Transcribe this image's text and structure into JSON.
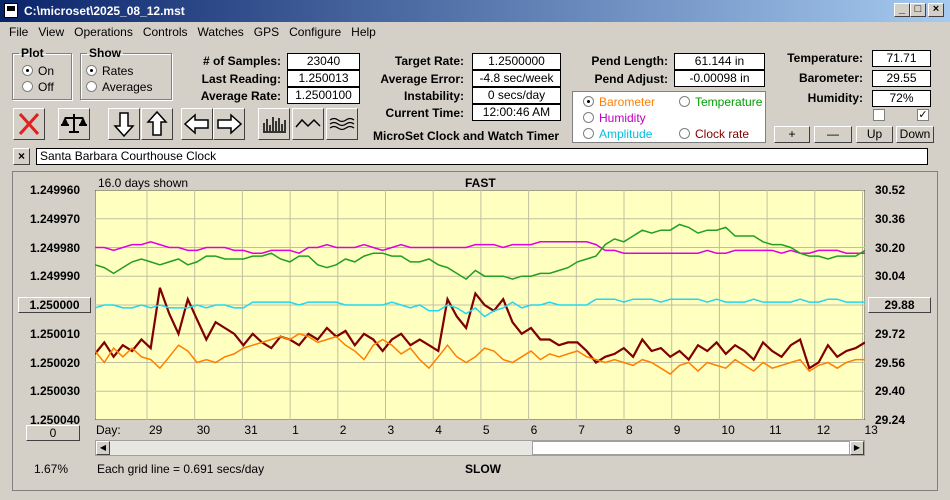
{
  "window": {
    "title": "C:\\microset\\2025_08_12.mst",
    "min_icon": "minimize-icon",
    "max_icon": "maximize-icon",
    "close_icon": "close-icon"
  },
  "menu": [
    "File",
    "View",
    "Operations",
    "Controls",
    "Watches",
    "GPS",
    "Configure",
    "Help"
  ],
  "plot_group": {
    "title": "Plot",
    "options": [
      "On",
      "Off"
    ],
    "selected": "On"
  },
  "show_group": {
    "title": "Show",
    "options": [
      "Rates",
      "Averages"
    ],
    "selected": "Rates"
  },
  "stats_left": [
    {
      "label": "# of Samples:",
      "value": "23040"
    },
    {
      "label": "Last Reading:",
      "value": "1.250013"
    },
    {
      "label": "Average Rate:",
      "value": "1.2500100"
    }
  ],
  "stats_mid": [
    {
      "label": "Target Rate:",
      "value": "1.2500000"
    },
    {
      "label": "Average Error:",
      "value": "-4.8 sec/week"
    },
    {
      "label": "Instability:",
      "value": "0 secs/day"
    },
    {
      "label": "Current Time:",
      "value": "12:00:46 AM"
    }
  ],
  "stats_pend": [
    {
      "label": "Pend Length:",
      "value": "61.144 in"
    },
    {
      "label": "Pend Adjust:",
      "value": "-0.00098 in"
    }
  ],
  "stats_env": [
    {
      "label": "Temperature:",
      "value": "71.71"
    },
    {
      "label": "Barometer:",
      "value": "29.55"
    },
    {
      "label": "Humidity:",
      "value": "72%"
    }
  ],
  "app_title": "MicroSet Clock and Watch Timer",
  "sensors": [
    {
      "label": "Barometer",
      "color": "#ff8000",
      "selected": true
    },
    {
      "label": "Temperature",
      "color": "#00a000",
      "selected": false
    },
    {
      "label": "Humidity",
      "color": "#c000c0",
      "selected": false
    },
    {
      "label": "Amplitude",
      "color": "#00c0e0",
      "selected": false
    },
    {
      "label": "Clock rate",
      "color": "#800000",
      "selected": false
    }
  ],
  "env_buttons": [
    "+",
    "—",
    "Up",
    "Down"
  ],
  "checkboxes": [
    false,
    true
  ],
  "toolbar_icons": [
    "clear-x-icon",
    "balance-scale-icon",
    "arrow-down-icon",
    "arrow-up-icon",
    "arrow-left-icon",
    "arrow-right-icon",
    "bar-graph-icon",
    "wave-icon",
    "multi-wave-icon"
  ],
  "clock_name": {
    "close_label": "×",
    "value": "Santa Barbara Courthouse Clock"
  },
  "chart_data": {
    "type": "line",
    "top_label": "FAST",
    "bottom_label": "SLOW",
    "days_shown": "16.0 days shown",
    "grid_note": "Each grid line = 0.691 secs/day",
    "percent": "1.67%",
    "day_label": "Day:",
    "x_ticks": [
      "29",
      "30",
      "31",
      "1",
      "2",
      "3",
      "4",
      "5",
      "6",
      "7",
      "8",
      "9",
      "10",
      "11",
      "12",
      "13"
    ],
    "y_left_ticks": [
      "1.249960",
      "1.249970",
      "1.249980",
      "1.249990",
      "1.250000",
      "1.250010",
      "1.250020",
      "1.250030",
      "1.250040"
    ],
    "y_left_range": [
      1.24996,
      1.25004
    ],
    "y_left_inverted": true,
    "y_right_ticks": [
      "30.52",
      "30.36",
      "30.20",
      "30.04",
      "29.88",
      "29.72",
      "29.56",
      "29.40",
      "29.24"
    ],
    "y_right_range": [
      29.24,
      30.52
    ],
    "center_left_label": "1.250000",
    "center_right_label": "29.88",
    "scroll_left_label": "0",
    "grid": true,
    "background": "#ffffc0",
    "series": [
      {
        "color": "#800000",
        "values": [
          1.250017,
          1.250013,
          1.250018,
          1.250014,
          1.250016,
          1.250012,
          1.250015,
          1.249994,
          1.250003,
          1.25001,
          1.249998,
          1.250005,
          1.250012,
          1.250006,
          1.250008,
          1.25001,
          1.250014,
          1.25001,
          1.250013,
          1.250015,
          1.250011,
          1.250012,
          1.250014,
          1.25001,
          1.250012,
          1.250008,
          1.250011,
          1.250009,
          1.250014,
          1.25001,
          1.250012,
          1.250016,
          1.250012,
          1.25001,
          1.250014,
          1.250012,
          1.250014,
          1.250016,
          1.249998,
          1.250004,
          1.250008,
          1.249996,
          1.25,
          1.250002,
          1.249998,
          1.250006,
          1.25001,
          1.250008,
          1.250012,
          1.250012,
          1.250014,
          1.250013,
          1.250013,
          1.250016,
          1.25002,
          1.250018,
          1.250017,
          1.250015,
          1.250018,
          1.250012,
          1.250016,
          1.250015,
          1.250018,
          1.250016,
          1.250019,
          1.250014,
          1.250016,
          1.250013,
          1.250017,
          1.250014,
          1.250016,
          1.250019,
          1.250013,
          1.250016,
          1.250018,
          1.250014,
          1.250012,
          1.250022,
          1.25002,
          1.250014,
          1.250018,
          1.250016,
          1.250015,
          1.250013
        ]
      },
      {
        "color": "#ff8000",
        "values": [
          1.250016,
          1.25002,
          1.250015,
          1.250018,
          1.250015,
          1.250018,
          1.250019,
          1.250022,
          1.250018,
          1.250014,
          1.250016,
          1.25002,
          1.250019,
          1.25002,
          1.250018,
          1.250017,
          1.250015,
          1.250014,
          1.250013,
          1.250012,
          1.250011,
          1.250012,
          1.25001,
          1.250011,
          1.250013,
          1.250012,
          1.250011,
          1.250014,
          1.250016,
          1.250019,
          1.250014,
          1.250012,
          1.250014,
          1.250017,
          1.250015,
          1.250019,
          1.250022,
          1.250018,
          1.250014,
          1.250018,
          1.25002,
          1.250018,
          1.250015,
          1.250016,
          1.250019,
          1.25002,
          1.250018,
          1.250016,
          1.250019,
          1.250017,
          1.250018,
          1.250017,
          1.250016,
          1.250018,
          1.250019,
          1.25002,
          1.250019,
          1.25002,
          1.250021,
          1.250019,
          1.25002,
          1.250022,
          1.250024,
          1.250021,
          1.25002,
          1.250023,
          1.25002,
          1.250021,
          1.250022,
          1.250019,
          1.250021,
          1.250023,
          1.25002,
          1.250022,
          1.250021,
          1.25002,
          1.250019,
          1.250023,
          1.250021,
          1.25002,
          1.250022,
          1.25002,
          1.250019,
          1.250019
        ]
      },
      {
        "color": "#e000e0",
        "values": [
          1.24998,
          1.24998,
          1.249981,
          1.24998,
          1.249979,
          1.249979,
          1.249978,
          1.249979,
          1.24998,
          1.24998,
          1.249981,
          1.249981,
          1.24998,
          1.24998,
          1.24998,
          1.249981,
          1.249981,
          1.249982,
          1.249982,
          1.249981,
          1.249981,
          1.249981,
          1.249982,
          1.24998,
          1.24998,
          1.249979,
          1.24998,
          1.24998,
          1.24998,
          1.249979,
          1.24998,
          1.249981,
          1.24998,
          1.249979,
          1.24998,
          1.24998,
          1.24998,
          1.24998,
          1.24998,
          1.24998,
          1.24998,
          1.249979,
          1.249979,
          1.249979,
          1.24998,
          1.249979,
          1.249979,
          1.249979,
          1.249978,
          1.249978,
          1.249978,
          1.249978,
          1.249978,
          1.249978,
          1.249979,
          1.249981,
          1.249981,
          1.249982,
          1.249982,
          1.249982,
          1.249982,
          1.249982,
          1.249982,
          1.249982,
          1.249982,
          1.249982,
          1.249981,
          1.249982,
          1.249982,
          1.249981,
          1.249981,
          1.249981,
          1.249981,
          1.249981,
          1.249982,
          1.249981,
          1.249982,
          1.249982,
          1.249981,
          1.249981,
          1.249981,
          1.249982,
          1.249982,
          1.249982
        ]
      },
      {
        "color": "#20a020",
        "values": [
          1.249986,
          1.249987,
          1.249989,
          1.249987,
          1.249985,
          1.249984,
          1.249985,
          1.249986,
          1.249985,
          1.249984,
          1.249986,
          1.249985,
          1.249983,
          1.249983,
          1.249984,
          1.249984,
          1.249984,
          1.249983,
          1.249983,
          1.249982,
          1.249984,
          1.249985,
          1.249983,
          1.249983,
          1.249986,
          1.249987,
          1.249986,
          1.249984,
          1.249985,
          1.249983,
          1.249982,
          1.249982,
          1.249983,
          1.249983,
          1.249985,
          1.249985,
          1.249984,
          1.249986,
          1.249987,
          1.249989,
          1.249991,
          1.249988,
          1.24999,
          1.24999,
          1.24999,
          1.249991,
          1.24999,
          1.24999,
          1.249989,
          1.249989,
          1.249988,
          1.249987,
          1.249985,
          1.249984,
          1.249983,
          1.249979,
          1.249977,
          1.249978,
          1.249976,
          1.249974,
          1.249975,
          1.249974,
          1.249974,
          1.249972,
          1.249973,
          1.249975,
          1.249974,
          1.249974,
          1.249973,
          1.249976,
          1.249976,
          1.249976,
          1.249978,
          1.249979,
          1.249979,
          1.24998,
          1.249982,
          1.249983,
          1.249983,
          1.249984,
          1.249983,
          1.249983,
          1.249983,
          1.249981
        ]
      },
      {
        "color": "#20d8f0",
        "values": [
          1.250001,
          1.25,
          1.25,
          1.250001,
          1.250001,
          1.25,
          1.250001,
          1.25,
          1.250001,
          1.250001,
          1.250001,
          1.25,
          1.250001,
          1.25,
          1.25,
          1.250001,
          1.250001,
          1.249999,
          1.249999,
          1.249999,
          1.249999,
          1.249999,
          1.25,
          1.249999,
          1.249999,
          1.249999,
          1.249999,
          1.25,
          1.25,
          1.25,
          1.25,
          1.25,
          1.249999,
          1.25,
          1.250001,
          1.25,
          1.250002,
          1.250002,
          1.25,
          1.250001,
          1.250003,
          1.250001,
          1.250004,
          1.250002,
          1.250001,
          1.249999,
          1.250001,
          1.25,
          1.25,
          1.249999,
          1.25,
          1.25,
          1.25,
          1.25,
          1.249998,
          1.249998,
          1.249998,
          1.249999,
          1.249998,
          1.249998,
          1.249998,
          1.249999,
          1.249998,
          1.249998,
          1.249998,
          1.249998,
          1.249999,
          1.249998,
          1.249999,
          1.249999,
          1.249999,
          1.249998,
          1.249999,
          1.249999,
          1.249999,
          1.249999,
          1.249998,
          1.249999,
          1.249999,
          1.249998,
          1.249998,
          1.249999,
          1.249999,
          1.249999
        ]
      }
    ]
  }
}
